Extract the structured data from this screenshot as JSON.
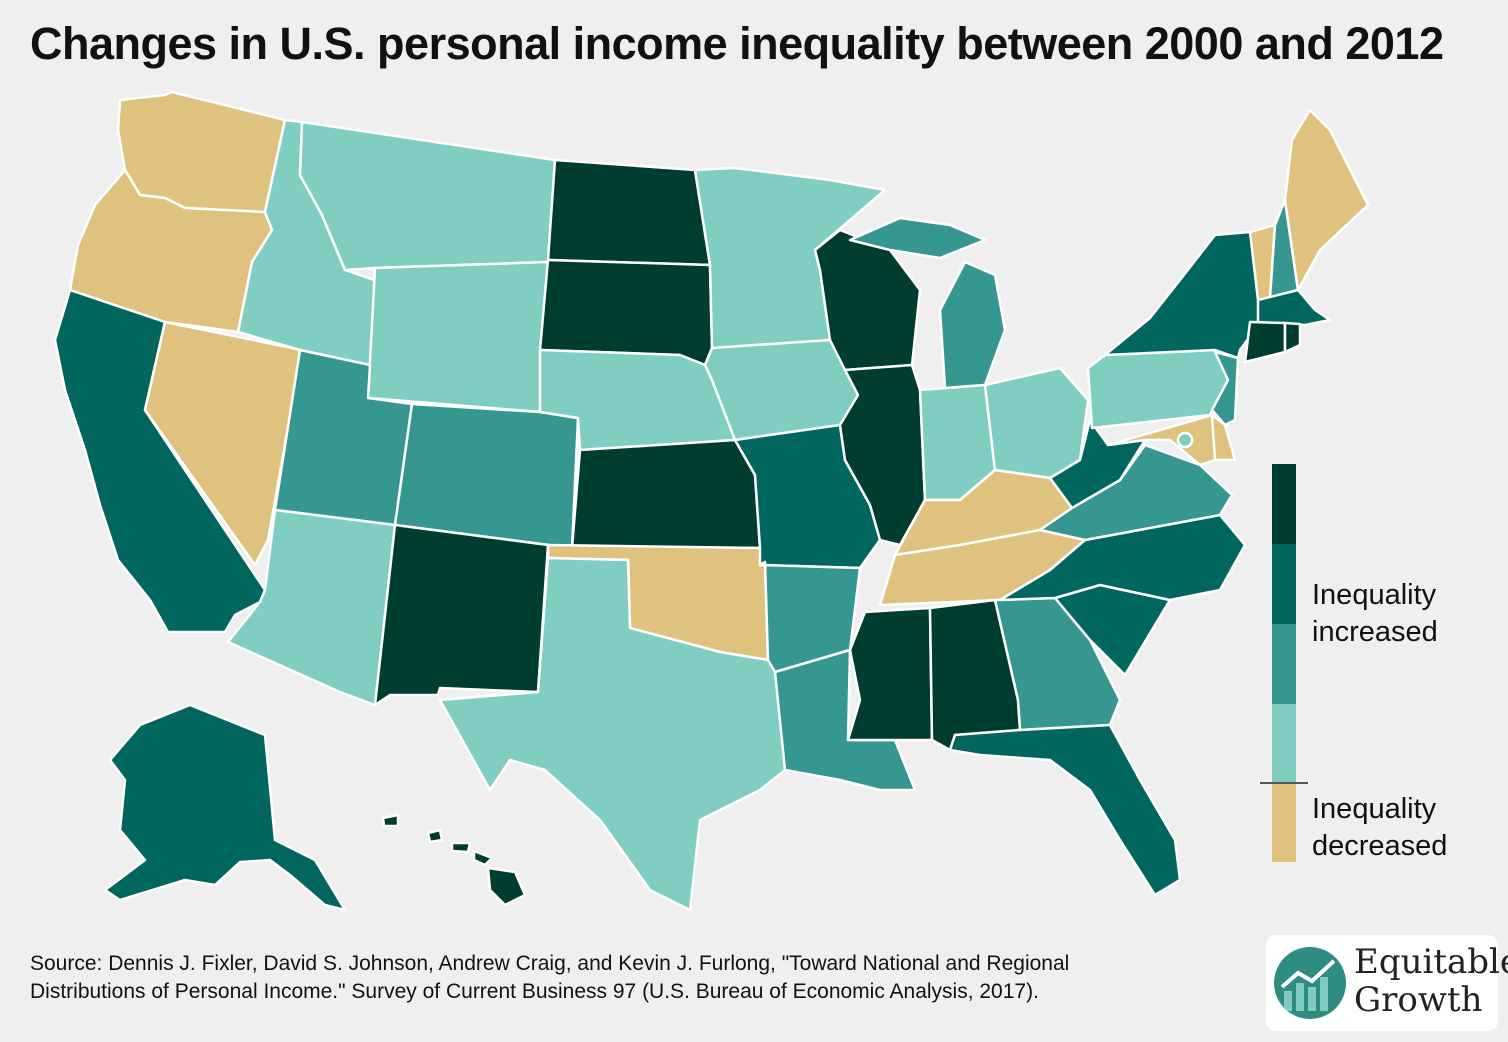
{
  "title": "Changes in U.S. personal income inequality between 2000 and 2012",
  "colors": {
    "decreased": "#dfc27d",
    "light": "#80cdc1",
    "medium": "#35978f",
    "dark": "#01665e",
    "darkest": "#003c30"
  },
  "legend": {
    "increased_line1": "Inequality",
    "increased_line2": "increased",
    "decreased_line1": "Inequality",
    "decreased_line2": "decreased"
  },
  "source": {
    "line1": "Source: Dennis J. Fixler, David S. Johnson, Andrew Craig, and Kevin J. Furlong, \"Toward National and Regional",
    "line2": "Distributions of Personal Income.\" Survey of Current Business 97 (U.S. Bureau of Economic Analysis, 2017)."
  },
  "logo": {
    "line1": "Equitable",
    "line2": "Growth",
    "icon": "equitable-growth-chart-icon"
  },
  "state_categories": {
    "WA": "decreased",
    "OR": "decreased",
    "NV": "decreased",
    "OK": "decreased",
    "KY": "decreased",
    "TN": "decreased",
    "ME": "decreased",
    "VT": "decreased",
    "MD": "decreased",
    "DE": "decreased",
    "ID": "light",
    "MT": "light",
    "WY": "light",
    "AZ": "light",
    "TX": "light",
    "MN": "light",
    "NE": "light",
    "IA": "light",
    "IN": "light",
    "OH": "light",
    "PA": "light",
    "DC": "light",
    "UT": "medium",
    "CO": "medium",
    "AR": "medium",
    "LA": "medium",
    "MI": "medium",
    "GA": "medium",
    "VA": "medium",
    "NJ": "medium",
    "NH": "medium",
    "CA": "dark",
    "AK": "dark",
    "MO": "dark",
    "WV": "dark",
    "NC": "dark",
    "SC": "dark",
    "FL": "dark",
    "NY": "dark",
    "MA": "dark",
    "ND": "darkest",
    "SD": "darkest",
    "KS": "darkest",
    "NM": "darkest",
    "WI": "darkest",
    "IL": "darkest",
    "MS": "darkest",
    "AL": "darkest",
    "CT": "darkest",
    "RI": "darkest",
    "HI": "darkest"
  }
}
